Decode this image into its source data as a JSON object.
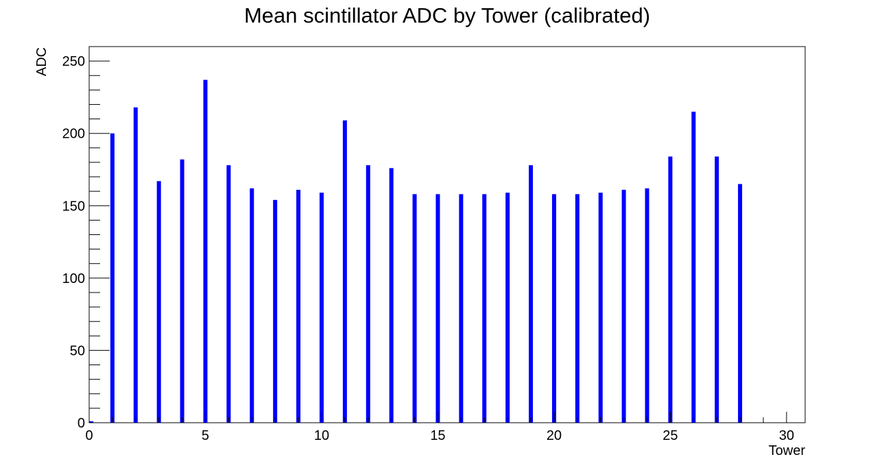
{
  "chart_data": {
    "type": "bar",
    "title": "Mean scintillator ADC by Tower (calibrated)",
    "xlabel": "Tower",
    "ylabel": "ADC",
    "xlim": [
      0,
      30.8
    ],
    "ylim": [
      0,
      260
    ],
    "x_ticks": [
      0,
      5,
      10,
      15,
      20,
      25,
      30
    ],
    "y_ticks": [
      0,
      50,
      100,
      150,
      200,
      250
    ],
    "grid": false,
    "bar_color": "#0000ff",
    "x": [
      0,
      1,
      2,
      3,
      4,
      5,
      6,
      7,
      8,
      9,
      10,
      11,
      12,
      13,
      14,
      15,
      16,
      17,
      18,
      19,
      20,
      21,
      22,
      23,
      24,
      25,
      26,
      27,
      28
    ],
    "values": [
      1,
      200,
      218,
      167,
      182,
      237,
      178,
      162,
      154,
      161,
      159,
      209,
      178,
      176,
      158,
      158,
      158,
      158,
      159,
      178,
      158,
      158,
      159,
      161,
      162,
      184,
      215,
      184,
      165
    ]
  }
}
